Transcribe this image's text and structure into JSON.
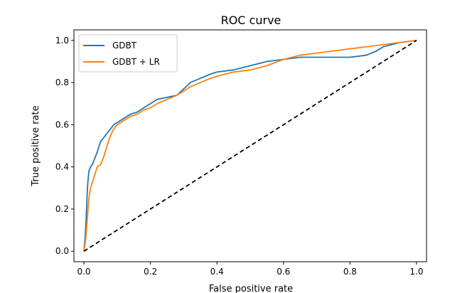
{
  "chart_data": {
    "type": "line",
    "title": "ROC curve",
    "xlabel": "False positive rate",
    "ylabel": "True positive rate",
    "xlim": [
      -0.03,
      1.03
    ],
    "ylim": [
      -0.05,
      1.05
    ],
    "xticks": [
      0.0,
      0.2,
      0.4,
      0.6,
      0.8,
      1.0
    ],
    "xtick_labels": [
      "0.0",
      "0.2",
      "0.4",
      "0.6",
      "0.8",
      "1.0"
    ],
    "yticks": [
      0.0,
      0.2,
      0.4,
      0.6,
      0.8,
      1.0
    ],
    "ytick_labels": [
      "0.0",
      "0.2",
      "0.4",
      "0.6",
      "0.8",
      "1.0"
    ],
    "grid": false,
    "legend_position": "upper-left",
    "series": [
      {
        "name": "GDBT",
        "color": "#1f77b4",
        "style": "solid",
        "x": [
          0.0,
          0.003,
          0.006,
          0.008,
          0.01,
          0.012,
          0.015,
          0.02,
          0.025,
          0.03,
          0.04,
          0.05,
          0.06,
          0.07,
          0.08,
          0.09,
          0.1,
          0.12,
          0.14,
          0.16,
          0.18,
          0.2,
          0.22,
          0.25,
          0.28,
          0.3,
          0.32,
          0.35,
          0.38,
          0.4,
          0.45,
          0.5,
          0.55,
          0.6,
          0.65,
          0.7,
          0.75,
          0.8,
          0.85,
          0.88,
          0.9,
          0.95,
          1.0
        ],
        "y": [
          0.0,
          0.05,
          0.13,
          0.2,
          0.28,
          0.33,
          0.38,
          0.4,
          0.41,
          0.43,
          0.47,
          0.52,
          0.54,
          0.56,
          0.58,
          0.6,
          0.61,
          0.63,
          0.65,
          0.66,
          0.68,
          0.7,
          0.72,
          0.73,
          0.74,
          0.77,
          0.8,
          0.82,
          0.84,
          0.85,
          0.86,
          0.88,
          0.9,
          0.91,
          0.92,
          0.92,
          0.92,
          0.92,
          0.93,
          0.95,
          0.97,
          0.99,
          1.0
        ]
      },
      {
        "name": "GDBT + LR",
        "color": "#ff7f0e",
        "style": "solid",
        "x": [
          0.0,
          0.005,
          0.01,
          0.015,
          0.02,
          0.03,
          0.04,
          0.05,
          0.06,
          0.07,
          0.08,
          0.09,
          0.1,
          0.12,
          0.14,
          0.16,
          0.18,
          0.2,
          0.22,
          0.25,
          0.28,
          0.3,
          0.32,
          0.35,
          0.38,
          0.4,
          0.45,
          0.5,
          0.55,
          0.6,
          0.65,
          0.7,
          0.75,
          0.8,
          0.85,
          0.9,
          0.95,
          1.0
        ],
        "y": [
          0.0,
          0.05,
          0.15,
          0.25,
          0.3,
          0.35,
          0.4,
          0.41,
          0.45,
          0.5,
          0.55,
          0.58,
          0.6,
          0.62,
          0.64,
          0.65,
          0.67,
          0.68,
          0.7,
          0.72,
          0.74,
          0.76,
          0.78,
          0.8,
          0.82,
          0.83,
          0.85,
          0.86,
          0.88,
          0.91,
          0.93,
          0.94,
          0.95,
          0.96,
          0.97,
          0.98,
          0.99,
          1.0
        ]
      },
      {
        "name": "",
        "color": "#000000",
        "style": "dashed",
        "x": [
          0.0,
          1.0
        ],
        "y": [
          0.0,
          1.0
        ]
      }
    ]
  }
}
